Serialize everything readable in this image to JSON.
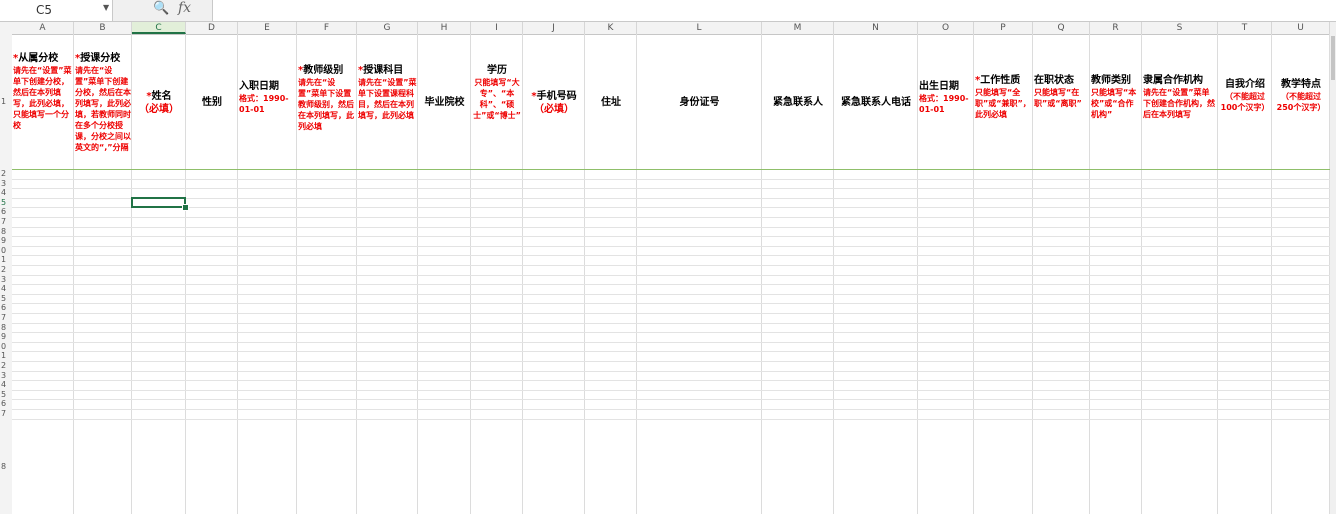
{
  "formula_bar": {
    "name_box": "C5",
    "zoom_icon": "zoom-icon",
    "fx_label": "fx",
    "formula_value": ""
  },
  "columns": [
    "A",
    "B",
    "C",
    "D",
    "E",
    "F",
    "G",
    "H",
    "I",
    "J",
    "K",
    "L",
    "M",
    "N",
    "O",
    "P",
    "Q",
    "R",
    "S",
    "T",
    "U"
  ],
  "selected_column": "C",
  "rows": [
    "1",
    "2",
    "3",
    "4",
    "5",
    "6",
    "7",
    "8",
    "9",
    "0",
    "1",
    "2",
    "3",
    "4",
    "5",
    "6",
    "7",
    "8",
    "9",
    "0",
    "1",
    "2",
    "3",
    "4",
    "5",
    "6",
    "7",
    "8"
  ],
  "selected_row": "5",
  "headers": {
    "A": {
      "star": "*",
      "title": "从属分校",
      "note": "请先在“设置”菜单下创建分校，然后在本列填写，此列必填，只能填写一个分校"
    },
    "B": {
      "star": "*",
      "title": "授课分校",
      "note": "请先在“设置”菜单下创建分校，然后在本列填写，此列必填，若教师同时在多个分校授课，分校之间以英文的“,”分隔"
    },
    "C": {
      "star": "*",
      "title": "姓名",
      "sub": "（必填）"
    },
    "D": {
      "title": "性别"
    },
    "E": {
      "title": "入职日期",
      "sub": "格式：1990-01-01"
    },
    "F": {
      "star": "*",
      "title": "教师级别",
      "note": "请先在“设置”菜单下设置教师级别，然后在本列填写，此列必填"
    },
    "G": {
      "star": "*",
      "title": "授课科目",
      "note": "请先在“设置”菜单下设置课程科目，然后在本列填写，此列必填"
    },
    "H": {
      "title": "毕业院校"
    },
    "I": {
      "title": "学历",
      "note": "只能填写“大专”、“本科”、“硕士”或“博士”"
    },
    "J": {
      "star": "*",
      "title": "手机号码",
      "sub": "（必填）"
    },
    "K": {
      "title": "住址"
    },
    "L": {
      "title": "身份证号"
    },
    "M": {
      "title": "紧急联系人"
    },
    "N": {
      "title": "紧急联系人电话"
    },
    "O": {
      "title": "出生日期",
      "sub": "格式：1990-01-01"
    },
    "P": {
      "star": "*",
      "title": "工作性质",
      "note": "只能填写“全职”或“兼职”，此列必填"
    },
    "Q": {
      "title": "在职状态",
      "note": "只能填写“在职”或“离职”"
    },
    "R": {
      "title": "教师类别",
      "note": "只能填写“本校”或“合作机构”"
    },
    "S": {
      "title": "隶属合作机构",
      "note": "请先在“设置”菜单下创建合作机构，然后在本列填写"
    },
    "T": {
      "title": "自我介绍",
      "note": "（不能超过100个汉字）"
    },
    "U": {
      "title": "教学特点",
      "note": "（不能超过250个汉字）"
    }
  }
}
